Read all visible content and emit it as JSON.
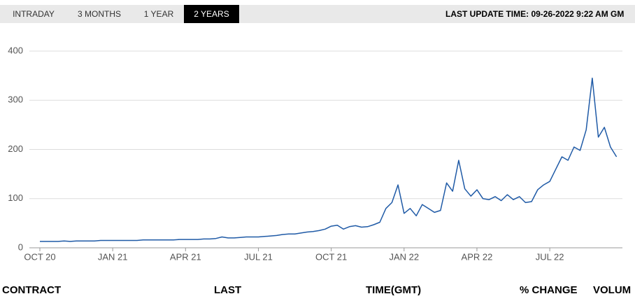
{
  "tabs": [
    "INTRADAY",
    "3 MONTHS",
    "1 YEAR",
    "2 YEARS"
  ],
  "active_tab": 3,
  "last_update": "LAST UPDATE TIME: 09-26-2022 9:22 AM GM",
  "chart_data": {
    "type": "line",
    "color": "#1f5aa6",
    "grid": true,
    "ylim": [
      0,
      400
    ],
    "yticks": [
      0,
      100,
      200,
      300,
      400
    ],
    "categories": [
      "OCT 20",
      null,
      null,
      null,
      null,
      null,
      null,
      null,
      null,
      null,
      null,
      null,
      "JAN 21",
      null,
      null,
      null,
      null,
      null,
      null,
      null,
      null,
      null,
      null,
      null,
      "APR 21",
      null,
      null,
      null,
      null,
      null,
      null,
      null,
      null,
      null,
      null,
      null,
      "JUL 21",
      null,
      null,
      null,
      null,
      null,
      null,
      null,
      null,
      null,
      null,
      null,
      "OCT 21",
      null,
      null,
      null,
      null,
      null,
      null,
      null,
      null,
      null,
      null,
      null,
      "JAN 22",
      null,
      null,
      null,
      null,
      null,
      null,
      null,
      null,
      null,
      null,
      null,
      "APR 22",
      null,
      null,
      null,
      null,
      null,
      null,
      null,
      null,
      null,
      null,
      null,
      "JUL 22",
      null,
      null,
      null,
      null,
      null,
      null,
      null,
      null,
      null,
      null,
      null
    ],
    "values": [
      13,
      13,
      13,
      13,
      14,
      13,
      14,
      14,
      14,
      14,
      15,
      15,
      15,
      15,
      15,
      15,
      15,
      16,
      16,
      16,
      16,
      16,
      16,
      17,
      17,
      17,
      17,
      18,
      18,
      19,
      22,
      20,
      20,
      21,
      22,
      22,
      22,
      23,
      24,
      25,
      27,
      28,
      28,
      30,
      32,
      33,
      35,
      38,
      44,
      46,
      38,
      43,
      45,
      42,
      43,
      47,
      52,
      80,
      92,
      128,
      70,
      80,
      65,
      88,
      80,
      72,
      76,
      132,
      115,
      178,
      120,
      105,
      118,
      100,
      98,
      104,
      96,
      108,
      98,
      104,
      92,
      94,
      118,
      128,
      135,
      160,
      185,
      178,
      205,
      198,
      240,
      345,
      225,
      245,
      205,
      185
    ]
  },
  "table_header": [
    "CONTRACT",
    "LAST",
    "TIME(GMT)",
    "% CHANGE",
    "VOLUM"
  ]
}
